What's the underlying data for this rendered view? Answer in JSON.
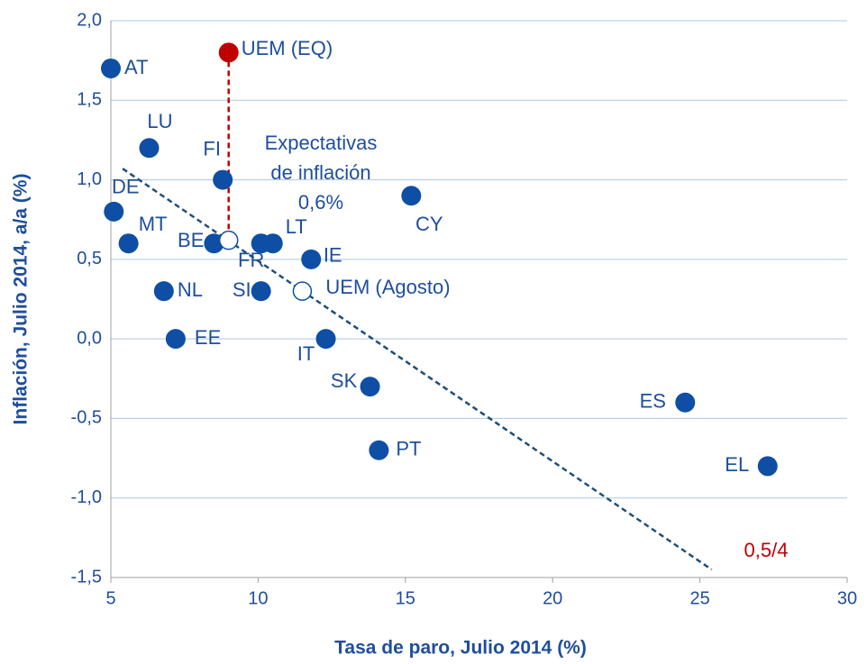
{
  "chart_data": {
    "type": "scatter",
    "xlabel": "Tasa de paro, Julio 2014 (%)",
    "ylabel": "Inflación, Julio 2014, a/a (%)",
    "xlim": [
      5,
      30
    ],
    "ylim": [
      -1.5,
      2.0
    ],
    "xticks": [
      5,
      10,
      15,
      20,
      25,
      30
    ],
    "yticks": [
      {
        "value": -1.5,
        "label": "-1,5"
      },
      {
        "value": -1.0,
        "label": "-1,0"
      },
      {
        "value": -0.5,
        "label": "-0,5"
      },
      {
        "value": 0,
        "label": "0,0"
      },
      {
        "value": 0.5,
        "label": "0,5"
      },
      {
        "value": 1.0,
        "label": "1,0"
      },
      {
        "value": 1.5,
        "label": "1,5"
      },
      {
        "value": 2.0,
        "label": "2,0"
      }
    ],
    "grid": true,
    "points": {
      "color": "#0e4fa5",
      "labels": [
        "AT",
        "LU",
        "FI",
        "DE",
        "MT",
        "BE",
        "FR",
        "LT",
        "IE",
        "NL",
        "SI",
        "EE",
        "IT",
        "SK",
        "PT",
        "CY",
        "ES",
        "EL"
      ],
      "x": [
        5.0,
        6.3,
        8.8,
        5.1,
        5.6,
        8.5,
        10.1,
        10.5,
        11.8,
        6.8,
        10.1,
        7.2,
        12.3,
        13.8,
        14.1,
        15.2,
        24.5,
        27.3
      ],
      "y": [
        1.7,
        1.2,
        1.0,
        0.8,
        0.6,
        0.6,
        0.6,
        0.6,
        0.5,
        0.3,
        0.3,
        0.0,
        0.0,
        -0.3,
        -0.7,
        0.9,
        -0.4,
        -0.8
      ]
    },
    "highlight": {
      "label": "UEM (EQ)",
      "x": 9.0,
      "y": 1.8,
      "color": "#c00000"
    },
    "hollow": {
      "labels": [
        null,
        "UEM (Agosto)"
      ],
      "x": [
        9.0,
        11.5
      ],
      "y": [
        0.62,
        0.3
      ]
    },
    "trendline": {
      "x": [
        5.4,
        25.4
      ],
      "y": [
        1.07,
        -1.45
      ],
      "color": "#1f4e79"
    },
    "annotation": [
      "Expectativas",
      "de inflación",
      "0,6%"
    ],
    "note": {
      "text": "0,5/4",
      "color": "#c00000"
    }
  }
}
